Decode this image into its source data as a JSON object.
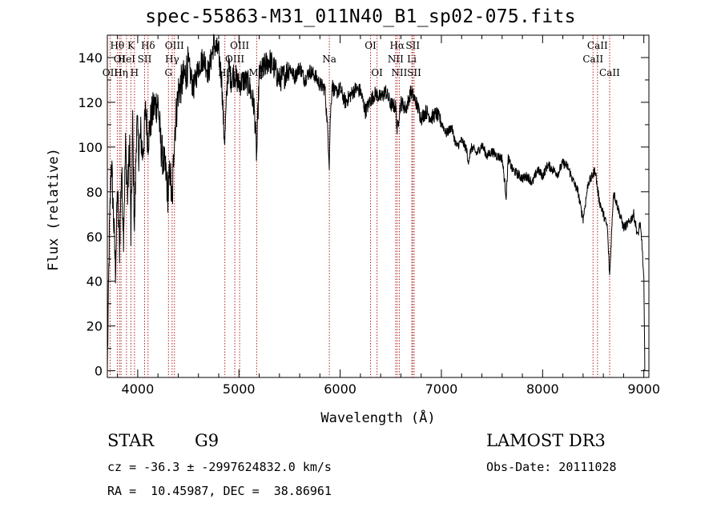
{
  "chart_data": {
    "type": "line",
    "title": "spec-55863-M31_011N40_B1_sp02-075.fits",
    "xlabel": "Wavelength (Å)",
    "ylabel": "Flux (relative)",
    "xlim": [
      3700,
      9050
    ],
    "ylim": [
      -3,
      150
    ],
    "xticks": [
      4000,
      5000,
      6000,
      7000,
      8000,
      9000
    ],
    "yticks": [
      0,
      20,
      40,
      60,
      80,
      100,
      120,
      140
    ],
    "series": [
      {
        "name": "spectrum",
        "x": [
          3700,
          3720,
          3740,
          3760,
          3780,
          3800,
          3820,
          3840,
          3860,
          3880,
          3900,
          3920,
          3933,
          3950,
          3968,
          3990,
          4010,
          4030,
          4050,
          4080,
          4100,
          4130,
          4160,
          4200,
          4230,
          4260,
          4280,
          4300,
          4320,
          4340,
          4360,
          4400,
          4450,
          4500,
          4550,
          4600,
          4650,
          4700,
          4750,
          4800,
          4830,
          4850,
          4861,
          4880,
          4900,
          4920,
          4950,
          5000,
          5050,
          5100,
          5150,
          5167,
          5175,
          5184,
          5200,
          5250,
          5300,
          5350,
          5400,
          5450,
          5500,
          5550,
          5600,
          5650,
          5700,
          5750,
          5800,
          5850,
          5880,
          5893,
          5900,
          5920,
          5950,
          6000,
          6050,
          6100,
          6150,
          6200,
          6250,
          6300,
          6350,
          6400,
          6450,
          6500,
          6550,
          6563,
          6580,
          6600,
          6650,
          6700,
          6750,
          6800,
          6850,
          6900,
          6950,
          7000,
          7050,
          7100,
          7150,
          7200,
          7250,
          7260,
          7300,
          7350,
          7400,
          7450,
          7500,
          7550,
          7600,
          7640,
          7660,
          7700,
          7750,
          7800,
          7850,
          7900,
          7950,
          8000,
          8050,
          8100,
          8150,
          8200,
          8250,
          8300,
          8350,
          8380,
          8400,
          8420,
          8450,
          8480,
          8500,
          8520,
          8540,
          8560,
          8600,
          8640,
          8662,
          8680,
          8700,
          8750,
          8800,
          8850,
          8900,
          8940,
          8960,
          8980,
          9000,
          9010
        ],
        "values": [
          0,
          60,
          95,
          70,
          45,
          80,
          55,
          90,
          62,
          100,
          78,
          103,
          58,
          110,
          62,
          112,
          98,
          106,
          96,
          117,
          103,
          112,
          118,
          120,
          100,
          92,
          88,
          78,
          90,
          72,
          104,
          125,
          130,
          137,
          126,
          136,
          140,
          133,
          146,
          142,
          130,
          108,
          103,
          125,
          137,
          130,
          133,
          128,
          130,
          128,
          118,
          104,
          95,
          110,
          132,
          136,
          139,
          135,
          130,
          132,
          136,
          131,
          136,
          130,
          134,
          132,
          128,
          126,
          105,
          92,
          110,
          128,
          124,
          126,
          120,
          123,
          126,
          125,
          116,
          121,
          124,
          122,
          125,
          119,
          118,
          107,
          114,
          120,
          117,
          125,
          120,
          113,
          116,
          113,
          115,
          111,
          106,
          109,
          100,
          103,
          99,
          93,
          100,
          97,
          101,
          96,
          98,
          96,
          95,
          78,
          95,
          90,
          88,
          86,
          87,
          84,
          90,
          87,
          92,
          90,
          88,
          93,
          91,
          85,
          80,
          72,
          68,
          74,
          84,
          86,
          88,
          90,
          82,
          76,
          70,
          64,
          42,
          60,
          80,
          72,
          64,
          66,
          70,
          60,
          66,
          58,
          40,
          0
        ]
      }
    ],
    "lines": [
      {
        "label": "Hθ",
        "x": 3798,
        "row": 0
      },
      {
        "label": "OI",
        "x": 3820,
        "row": 1
      },
      {
        "label": "OII",
        "x": 3727,
        "row": 2
      },
      {
        "label": "Hη",
        "x": 3835,
        "row": 2
      },
      {
        "label": "K",
        "x": 3933,
        "row": 0
      },
      {
        "label": "HeI",
        "x": 3889,
        "row": 1
      },
      {
        "label": "SII",
        "x": 4068,
        "row": 1
      },
      {
        "label": "H",
        "x": 3968,
        "row": 2
      },
      {
        "label": "Hδ",
        "x": 4102,
        "row": 0
      },
      {
        "label": "OIII",
        "x": 4363,
        "row": 0
      },
      {
        "label": "Hγ",
        "x": 4340,
        "row": 1
      },
      {
        "label": "G",
        "x": 4304,
        "row": 2
      },
      {
        "label": "OIII",
        "x": 5007,
        "row": 0
      },
      {
        "label": "OIII",
        "x": 4959,
        "row": 1
      },
      {
        "label": "Hβ",
        "x": 4861,
        "row": 2
      },
      {
        "label": "Mg",
        "x": 5175,
        "row": 2
      },
      {
        "label": "Na",
        "x": 5893,
        "row": 1
      },
      {
        "label": "OI",
        "x": 6300,
        "row": 0
      },
      {
        "label": "OI",
        "x": 6364,
        "row": 2
      },
      {
        "label": "Hα",
        "x": 6563,
        "row": 0
      },
      {
        "label": "SII",
        "x": 6717,
        "row": 0
      },
      {
        "label": "NII",
        "x": 6548,
        "row": 1
      },
      {
        "label": "Li",
        "x": 6708,
        "row": 1
      },
      {
        "label": "NII",
        "x": 6584,
        "row": 2
      },
      {
        "label": "SII",
        "x": 6731,
        "row": 2
      },
      {
        "label": "CaII",
        "x": 8542,
        "row": 0
      },
      {
        "label": "CaII",
        "x": 8498,
        "row": 1
      },
      {
        "label": "CaII",
        "x": 8662,
        "row": 2
      }
    ]
  },
  "info": {
    "class": "STAR",
    "subclass": "G9",
    "survey": "LAMOST DR3",
    "cz": "cz = -36.3 ± -2997624832.0 km/s",
    "obs_date": "Obs-Date: 20111028",
    "radec": "RA =  10.45987, DEC =  38.86961"
  }
}
